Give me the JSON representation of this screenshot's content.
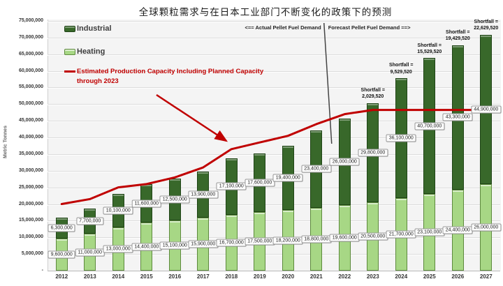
{
  "title": "全球颗粒需求与在日本工业部门不断变化的政策下的预测",
  "legend": {
    "industrial": "Industrial",
    "heating": "Heating",
    "capacity": "Estimated Production Capacity Including Planned Capacity through 2023"
  },
  "annotation": {
    "actual": "<== Actual Pellet Fuel Demand",
    "forecast": "Forecast Pellet Fuel Demand ==>"
  },
  "shortfall_prefix": "Shortfall =",
  "colors": {
    "industrial_fill": "#38682a",
    "industrial_border": "#1f4416",
    "heating_fill": "#a7d785",
    "heating_border": "#5d8a3d",
    "capacity_line": "#c00000",
    "divider_line": "#444444"
  },
  "chart_data": {
    "type": "bar",
    "subtype": "stacked-bars-with-line",
    "title": "全球颗粒需求与在日本工业部门不断变化的政策下的预测",
    "xlabel": "",
    "ylabel": "Metric Tonnes",
    "ylim": [
      0,
      75000000
    ],
    "ytick_step": 5000000,
    "zero_tick_label": "-",
    "grid": true,
    "legend_position": "top-left",
    "categories": [
      "2012",
      "2013",
      "2014",
      "2015",
      "2016",
      "2017",
      "2018",
      "2019",
      "2020",
      "2021",
      "2022",
      "2023",
      "2024",
      "2025",
      "2026",
      "2027"
    ],
    "series": [
      {
        "name": "Heating",
        "role": "bar",
        "stack_order": 0,
        "values": [
          9600000,
          11000000,
          13000000,
          14400000,
          15100000,
          15900000,
          16700000,
          17500000,
          18200000,
          18800000,
          19600000,
          20500000,
          21700000,
          23100000,
          24400000,
          26000000
        ]
      },
      {
        "name": "Industrial",
        "role": "bar",
        "stack_order": 1,
        "values": [
          6300000,
          7700000,
          10100000,
          11600000,
          12500000,
          13900000,
          17100000,
          17600000,
          19400000,
          23400000,
          26000000,
          29800000,
          36100000,
          40700000,
          43300000,
          44900000
        ]
      },
      {
        "name": "Estimated Production Capacity Including Planned Capacity through 2023",
        "role": "line",
        "values": [
          20000000,
          21500000,
          25000000,
          26000000,
          28000000,
          31000000,
          36500000,
          38500000,
          40500000,
          44000000,
          47000000,
          48270480,
          48270480,
          48270480,
          48270480,
          48270480
        ]
      }
    ],
    "shortfalls": [
      {
        "year": "2023",
        "value": "2,029,520"
      },
      {
        "year": "2024",
        "value": "9,529,520"
      },
      {
        "year": "2025",
        "value": "15,529,520"
      },
      {
        "year": "2026",
        "value": "19,429,520"
      },
      {
        "year": "2027",
        "value": "22,629,520"
      }
    ],
    "divider_between": [
      "2021",
      "2022"
    ]
  }
}
